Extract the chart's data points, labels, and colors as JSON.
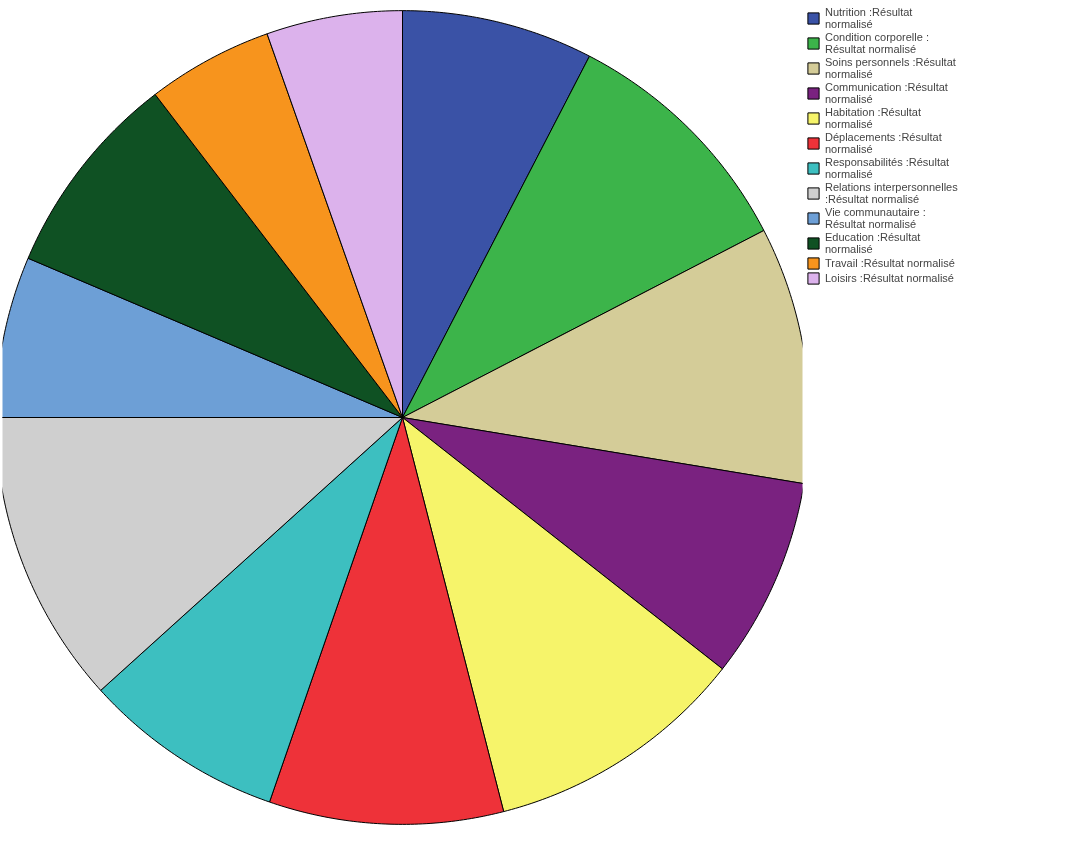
{
  "chart_data": {
    "type": "pie",
    "categories": [
      "Nutrition :Résultat normalisé",
      "Condition corporelle : Résultat normalisé",
      "Soins personnels :Résultat normalisé",
      "Communication :Résultat normalisé",
      "Habitation :Résultat normalisé",
      "Déplacements :Résultat normalisé",
      "Responsabilités :Résultat normalisé",
      "Relations interpersonnelles :Résultat normalisé",
      "Vie communautaire : Résultat normalisé",
      "Education :Résultat normalisé",
      "Travail :Résultat normalisé",
      "Loisirs :Résultat normalisé"
    ],
    "values": [
      7.6,
      9.8,
      10.2,
      8.0,
      10.4,
      9.3,
      8.0,
      11.7,
      6.4,
      8.2,
      5.0,
      5.4
    ],
    "colors": [
      "#3a52a6",
      "#3cb44a",
      "#d4cc98",
      "#7a2280",
      "#f6f46a",
      "#ee3239",
      "#3dbfc0",
      "#cfcfcf",
      "#6d9fd6",
      "#0f5123",
      "#f7941d",
      "#dcb2ec"
    ],
    "legend": "top right"
  }
}
